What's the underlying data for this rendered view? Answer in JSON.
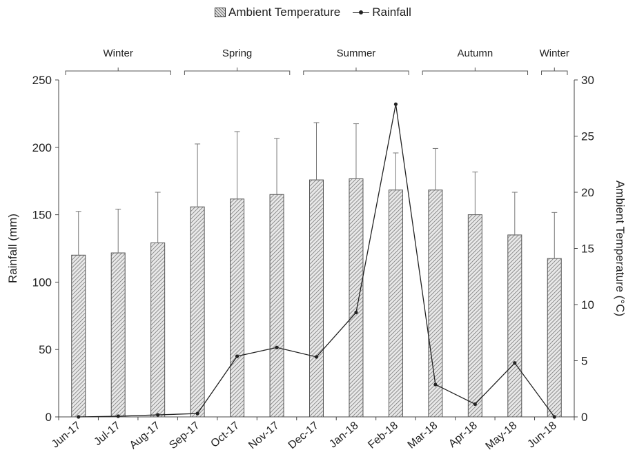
{
  "chart_data": {
    "type": "bar",
    "categories": [
      "Jun-17",
      "Jul-17",
      "Aug-17",
      "Sep-17",
      "Oct-17",
      "Nov-17",
      "Dec-17",
      "Jan-18",
      "Feb-18",
      "Mar-18",
      "Apr-18",
      "May-18",
      "Jun-18"
    ],
    "series": [
      {
        "name": "Ambient Temperature",
        "type": "bar",
        "axis": "right",
        "values": [
          14.4,
          14.6,
          15.5,
          18.7,
          19.4,
          19.8,
          21.1,
          21.2,
          20.2,
          20.2,
          18.0,
          16.2,
          14.1
        ],
        "error_upper": [
          18.3,
          18.5,
          20.0,
          24.3,
          25.4,
          24.8,
          26.2,
          26.1,
          23.5,
          23.9,
          21.8,
          20.0,
          18.2
        ]
      },
      {
        "name": "Rainfall",
        "type": "line",
        "axis": "left",
        "values": [
          0,
          0.5,
          1.5,
          2.5,
          45,
          51.5,
          44.5,
          77.5,
          232,
          24,
          9.5,
          40,
          0
        ]
      }
    ],
    "ylabel": "Rainfall (mm)",
    "ylabel_right": "Ambient Temperature (°C)",
    "ylim": [
      0,
      250
    ],
    "ylim_right": [
      0,
      30
    ],
    "yticks": [
      0,
      50,
      100,
      150,
      200,
      250
    ],
    "yticks_right": [
      0,
      5,
      10,
      15,
      20,
      25,
      30
    ],
    "seasons": [
      {
        "label": "Winter",
        "start": 0,
        "end": 2
      },
      {
        "label": "Spring",
        "start": 3,
        "end": 5
      },
      {
        "label": "Summer",
        "start": 6,
        "end": 8
      },
      {
        "label": "Autumn",
        "start": 9,
        "end": 11
      },
      {
        "label": "Winter",
        "start": 12,
        "end": 12
      }
    ],
    "grid": false,
    "legend_position": "top-center"
  }
}
